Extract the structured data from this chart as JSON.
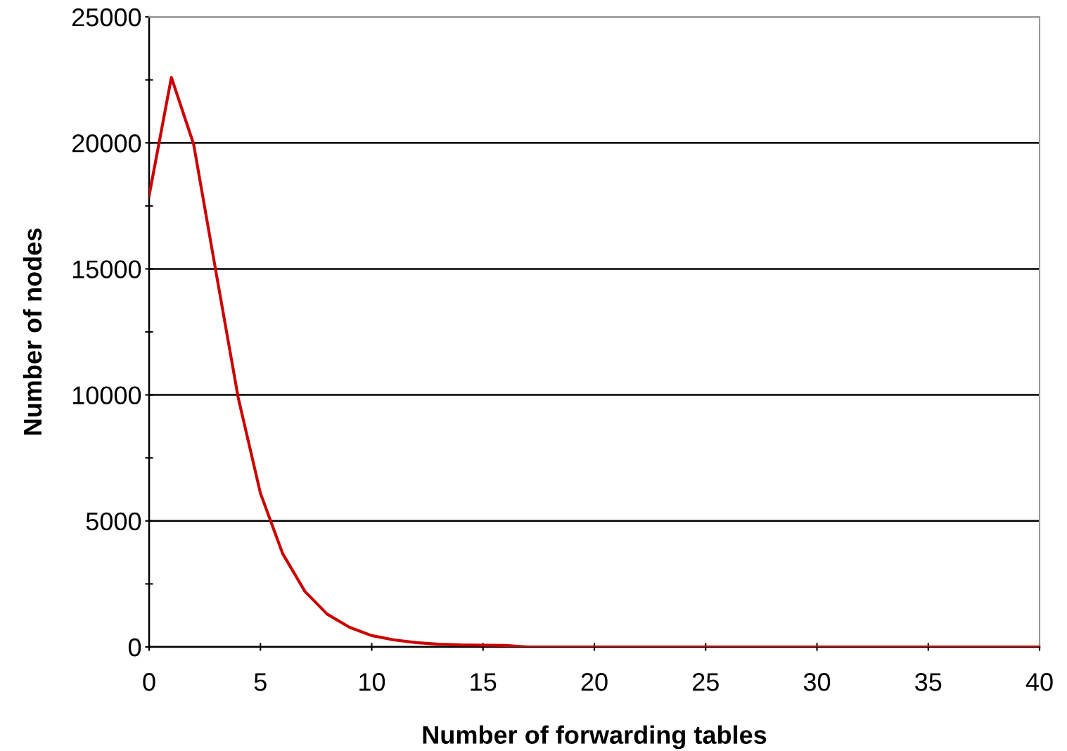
{
  "chart_data": {
    "type": "line",
    "xlabel": "Number of forwarding tables",
    "ylabel": "Number of nodes",
    "x": [
      0,
      1,
      2,
      3,
      4,
      5,
      6,
      7,
      8,
      9,
      10,
      11,
      12,
      13,
      14,
      15,
      16,
      17,
      18,
      19,
      20,
      21,
      22,
      23,
      24,
      25,
      26,
      27,
      28,
      29,
      30,
      31,
      32,
      33,
      34,
      35,
      36,
      37,
      38,
      39,
      40
    ],
    "series": [
      {
        "color": "#cc0000",
        "values": [
          17900,
          22600,
          19950,
          14900,
          9900,
          6100,
          3700,
          2200,
          1300,
          780,
          450,
          280,
          170,
          110,
          80,
          70,
          60,
          0,
          0,
          0,
          0,
          0,
          0,
          0,
          0,
          0,
          0,
          0,
          0,
          0,
          0,
          0,
          0,
          0,
          0,
          0,
          0,
          0,
          0,
          0,
          0
        ]
      }
    ],
    "xlim": [
      0,
      40
    ],
    "xticks": [
      0,
      5,
      10,
      15,
      20,
      25,
      30,
      35,
      40
    ],
    "ylim": [
      0,
      25000
    ],
    "yticks": [
      0,
      {
        "value": 2500,
        "label": null
      },
      5000,
      {
        "value": 7500,
        "label": null
      },
      10000,
      {
        "value": 12500,
        "label": null
      },
      15000,
      {
        "value": 17500,
        "label": null
      },
      20000,
      {
        "value": 22500,
        "label": null
      },
      25000
    ],
    "grid": "y",
    "marker": "none",
    "line_style": "solid"
  }
}
